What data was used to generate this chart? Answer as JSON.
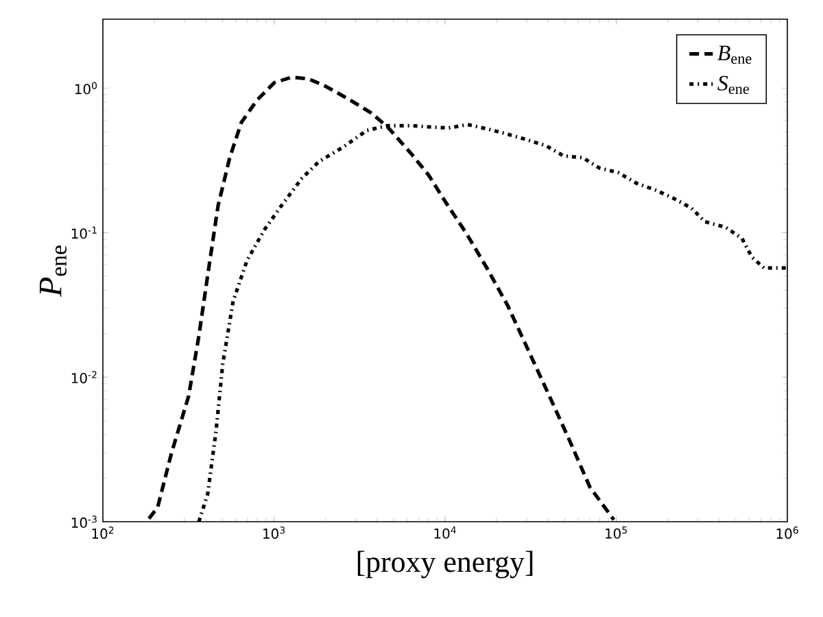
{
  "chart_data": {
    "type": "line",
    "xlabel": "[proxy energy]",
    "ylabel": "*P*$_{ene}$",
    "log": "xy",
    "legend": "top right",
    "marker": "none",
    "xlim": [
      100,
      1000000
    ],
    "ylim": [
      0.001,
      3
    ],
    "xticks": [
      {
        "value": 100,
        "label": "10$^{2}$"
      },
      {
        "value": 1000,
        "label": "10$^{3}$"
      },
      {
        "value": 10000,
        "label": "10$^{4}$"
      },
      {
        "value": 100000,
        "label": "10$^{5}$"
      },
      {
        "value": 1000000,
        "label": "10$^{6}$"
      }
    ],
    "yticks": [
      {
        "value": 0.001,
        "label": "10$^{-3}$"
      },
      {
        "value": 0.01,
        "label": "10$^{-2}$"
      },
      {
        "value": 0.1,
        "label": "10$^{-1}$"
      },
      {
        "value": 1,
        "label": "10$^{0}$"
      }
    ],
    "series": [
      {
        "name": "*B*$_{ene}$",
        "color": "#000000",
        "line_style": "dashed",
        "x": [
          186,
          209,
          252,
          317,
          364,
          410,
          471,
          551,
          645,
          798,
          1004,
          1265,
          1592,
          2009,
          2772,
          3660,
          4605,
          6366,
          8015,
          10090,
          13300,
          17540,
          23160,
          30530,
          40280,
          53100,
          70100,
          96800
        ],
        "values": [
          0.00105,
          0.00126,
          0.003,
          0.0074,
          0.0193,
          0.051,
          0.153,
          0.33,
          0.58,
          0.83,
          1.09,
          1.19,
          1.16,
          1.03,
          0.83,
          0.68,
          0.54,
          0.35,
          0.25,
          0.162,
          0.099,
          0.057,
          0.0315,
          0.0155,
          0.0076,
          0.0037,
          0.00174,
          0.00103
        ]
      },
      {
        "name": "*S*$_{ene}$",
        "color": "#000000",
        "line_style": "dotted",
        "x": [
          364,
          410,
          458,
          502,
          577,
          695,
          875,
          1102,
          1452,
          1829,
          2528,
          3492,
          4605,
          6366,
          7943,
          10480,
          13550,
          17900,
          23180,
          30000,
          38800,
          49300,
          63900,
          79800,
          103000,
          131300,
          170000,
          216000,
          275000,
          330000,
          436000,
          544000,
          619000,
          731000,
          982000
        ],
        "values": [
          0.001,
          0.00156,
          0.0042,
          0.0124,
          0.0335,
          0.064,
          0.104,
          0.153,
          0.237,
          0.31,
          0.39,
          0.51,
          0.55,
          0.55,
          0.54,
          0.53,
          0.56,
          0.52,
          0.48,
          0.44,
          0.4,
          0.34,
          0.33,
          0.28,
          0.26,
          0.22,
          0.197,
          0.173,
          0.148,
          0.119,
          0.109,
          0.091,
          0.068,
          0.057,
          0.057
        ]
      }
    ]
  }
}
